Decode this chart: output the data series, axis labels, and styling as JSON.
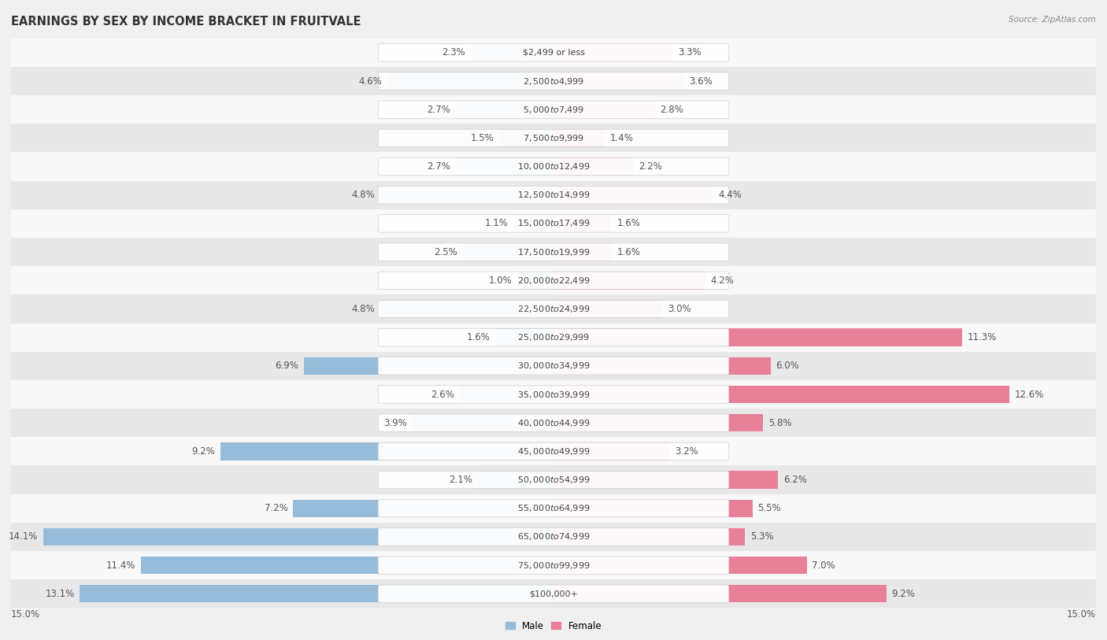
{
  "title": "EARNINGS BY SEX BY INCOME BRACKET IN FRUITVALE",
  "source": "Source: ZipAtlas.com",
  "categories": [
    "$2,499 or less",
    "$2,500 to $4,999",
    "$5,000 to $7,499",
    "$7,500 to $9,999",
    "$10,000 to $12,499",
    "$12,500 to $14,999",
    "$15,000 to $17,499",
    "$17,500 to $19,999",
    "$20,000 to $22,499",
    "$22,500 to $24,999",
    "$25,000 to $29,999",
    "$30,000 to $34,999",
    "$35,000 to $39,999",
    "$40,000 to $44,999",
    "$45,000 to $49,999",
    "$50,000 to $54,999",
    "$55,000 to $64,999",
    "$65,000 to $74,999",
    "$75,000 to $99,999",
    "$100,000+"
  ],
  "male_values": [
    2.3,
    4.6,
    2.7,
    1.5,
    2.7,
    4.8,
    1.1,
    2.5,
    1.0,
    4.8,
    1.6,
    6.9,
    2.6,
    3.9,
    9.2,
    2.1,
    7.2,
    14.1,
    11.4,
    13.1
  ],
  "female_values": [
    3.3,
    3.6,
    2.8,
    1.4,
    2.2,
    4.4,
    1.6,
    1.6,
    4.2,
    3.0,
    11.3,
    6.0,
    12.6,
    5.8,
    3.2,
    6.2,
    5.5,
    5.3,
    7.0,
    9.2
  ],
  "male_color": "#97bcd9",
  "female_color": "#e8809a",
  "bg_color": "#f0f0f0",
  "row_color_odd": "#e8e8e8",
  "row_color_even": "#f8f8f8",
  "xlim": 15.0,
  "title_fontsize": 10.5,
  "label_fontsize": 8.5,
  "cat_fontsize": 8.0,
  "bar_height": 0.62
}
